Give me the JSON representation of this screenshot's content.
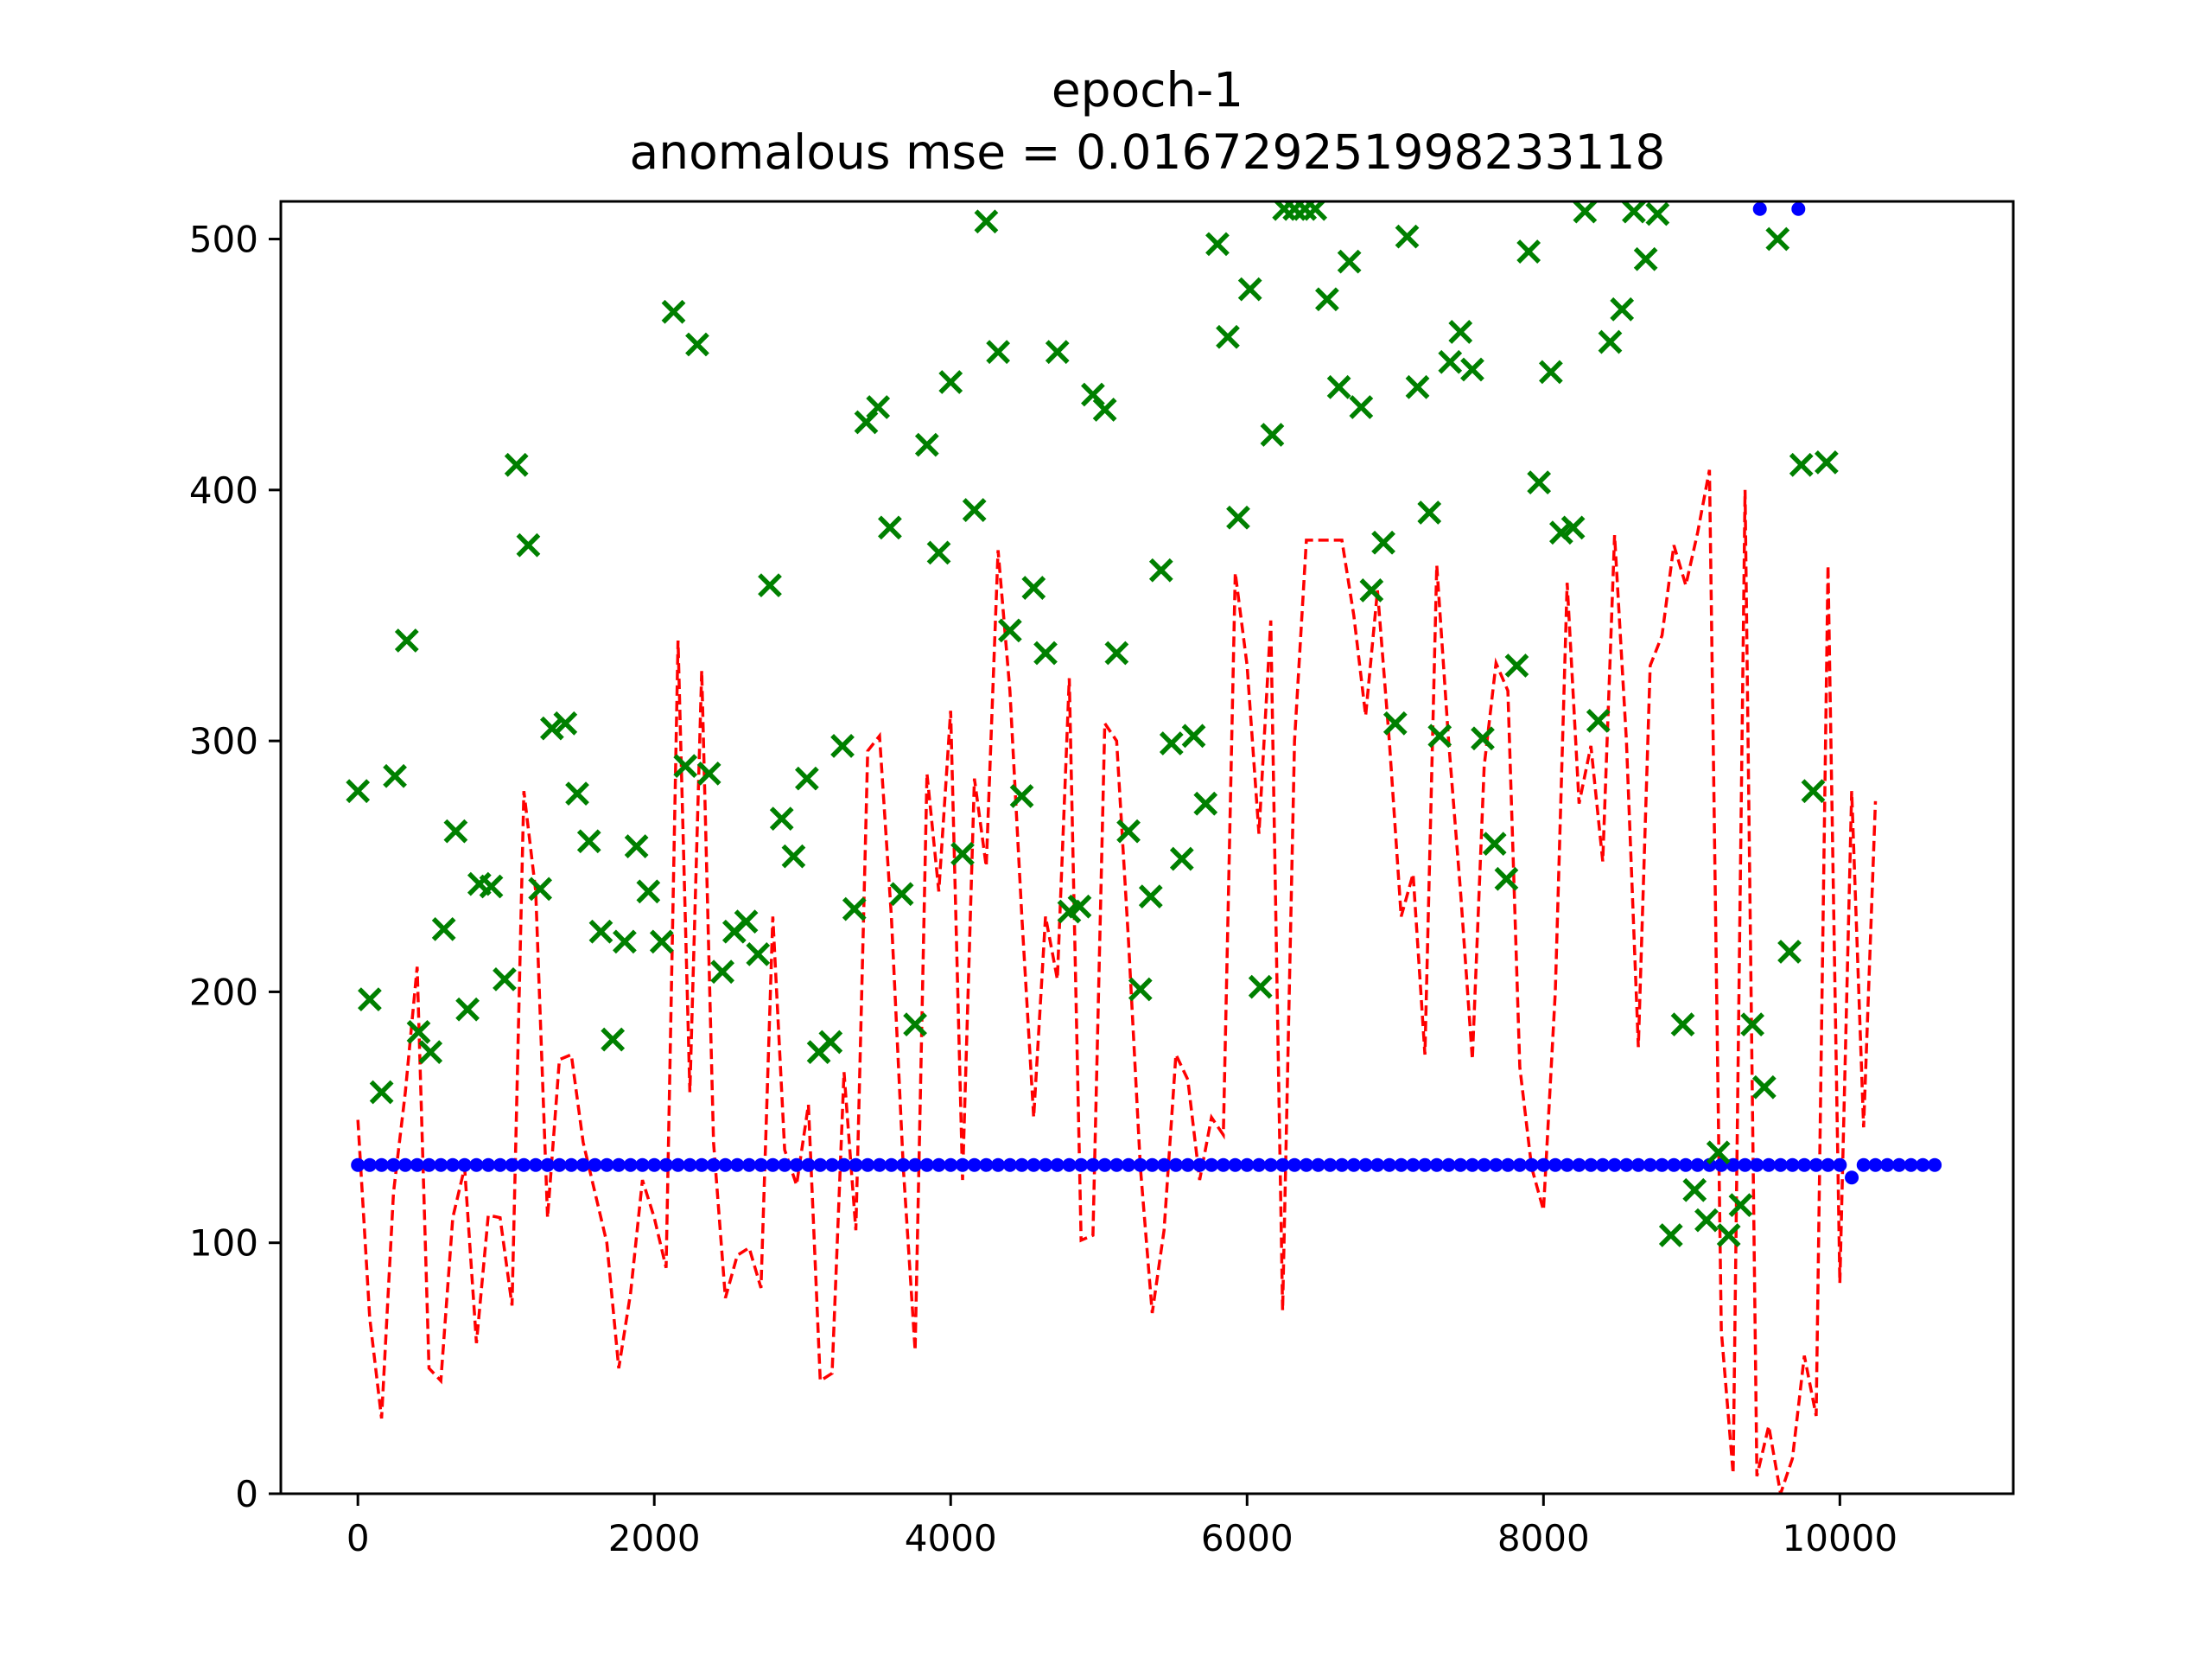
{
  "chart_data": {
    "type": "scatter",
    "title": "epoch-1",
    "subtitle": "anomalous mse = 0.016729251998233118",
    "xlabel": "",
    "ylabel": "",
    "xlim": [
      -520,
      11170
    ],
    "ylim": [
      0,
      515
    ],
    "xticks": [
      0,
      2000,
      4000,
      6000,
      8000,
      10000
    ],
    "yticks": [
      0,
      100,
      200,
      300,
      400,
      500
    ],
    "grid": false,
    "legend": "none",
    "colors": {
      "dots": "#0000ff",
      "crosses": "#008000",
      "line": "#ff0000"
    },
    "series": [
      {
        "style": "dots",
        "x_start": 0,
        "x_step": 80,
        "count": 134,
        "default_y": 131,
        "overrides": [
          [
            117,
            131
          ],
          [
            118,
            131
          ],
          [
            123,
            131
          ],
          [
            124,
            131
          ],
          [
            125,
            131
          ],
          [
            126,
            126
          ],
          [
            127,
            131
          ]
        ],
        "extra_points": [
          [
            9460,
            512
          ],
          [
            9720,
            512
          ]
        ]
      },
      {
        "style": "crosses",
        "points": [
          [
            0,
            280
          ],
          [
            80,
            197
          ],
          [
            160,
            160
          ],
          [
            250,
            286
          ],
          [
            330,
            340
          ],
          [
            410,
            184
          ],
          [
            490,
            176
          ],
          [
            580,
            225
          ],
          [
            660,
            264
          ],
          [
            740,
            193
          ],
          [
            820,
            243
          ],
          [
            900,
            242
          ],
          [
            990,
            205
          ],
          [
            1070,
            410
          ],
          [
            1150,
            378
          ],
          [
            1230,
            241
          ],
          [
            1310,
            305
          ],
          [
            1400,
            307
          ],
          [
            1480,
            279
          ],
          [
            1560,
            260
          ],
          [
            1640,
            224
          ],
          [
            1720,
            181
          ],
          [
            1800,
            220
          ],
          [
            1880,
            258
          ],
          [
            1960,
            240
          ],
          [
            2050,
            220
          ],
          [
            2130,
            471
          ],
          [
            2210,
            290
          ],
          [
            2290,
            458
          ],
          [
            2370,
            287
          ],
          [
            2460,
            208
          ],
          [
            2540,
            224
          ],
          [
            2620,
            228
          ],
          [
            2700,
            215
          ],
          [
            2780,
            362
          ],
          [
            2860,
            269
          ],
          [
            2940,
            254
          ],
          [
            3030,
            285
          ],
          [
            3110,
            176
          ],
          [
            3190,
            180
          ],
          [
            3270,
            298
          ],
          [
            3350,
            233
          ],
          [
            3430,
            427
          ],
          [
            3510,
            433
          ],
          [
            3590,
            385
          ],
          [
            3670,
            239
          ],
          [
            3760,
            187
          ],
          [
            3840,
            418
          ],
          [
            3920,
            375
          ],
          [
            4000,
            443
          ],
          [
            4080,
            255
          ],
          [
            4160,
            392
          ],
          [
            4240,
            507
          ],
          [
            4320,
            455
          ],
          [
            4400,
            344
          ],
          [
            4480,
            278
          ],
          [
            4560,
            361
          ],
          [
            4640,
            335
          ],
          [
            4720,
            455
          ],
          [
            4800,
            232
          ],
          [
            4870,
            234
          ],
          [
            4960,
            438
          ],
          [
            5040,
            432
          ],
          [
            5120,
            335
          ],
          [
            5200,
            264
          ],
          [
            5280,
            201
          ],
          [
            5350,
            238
          ],
          [
            5420,
            368
          ],
          [
            5490,
            299
          ],
          [
            5560,
            253
          ],
          [
            5640,
            302
          ],
          [
            5720,
            275
          ],
          [
            5800,
            498
          ],
          [
            5870,
            461
          ],
          [
            5940,
            389
          ],
          [
            6020,
            480
          ],
          [
            6090,
            202
          ],
          [
            6170,
            422
          ],
          [
            6250,
            512
          ],
          [
            6320,
            512
          ],
          [
            6390,
            512
          ],
          [
            6460,
            512
          ],
          [
            6540,
            476
          ],
          [
            6620,
            441
          ],
          [
            6690,
            491
          ],
          [
            6770,
            433
          ],
          [
            6840,
            360
          ],
          [
            6920,
            379
          ],
          [
            7000,
            307
          ],
          [
            7080,
            501
          ],
          [
            7150,
            441
          ],
          [
            7230,
            391
          ],
          [
            7300,
            302
          ],
          [
            7370,
            451
          ],
          [
            7440,
            463
          ],
          [
            7520,
            448
          ],
          [
            7590,
            301
          ],
          [
            7670,
            259
          ],
          [
            7750,
            245
          ],
          [
            7820,
            330
          ],
          [
            7900,
            495
          ],
          [
            7970,
            403
          ],
          [
            8050,
            447
          ],
          [
            8120,
            383
          ],
          [
            8200,
            385
          ],
          [
            8280,
            511
          ],
          [
            8370,
            308
          ],
          [
            8450,
            459
          ],
          [
            8530,
            472
          ],
          [
            8610,
            511
          ],
          [
            8690,
            492
          ],
          [
            8770,
            510
          ],
          [
            8860,
            103
          ],
          [
            8940,
            187
          ],
          [
            9020,
            121
          ],
          [
            9100,
            109
          ],
          [
            9180,
            136
          ],
          [
            9250,
            103
          ],
          [
            9330,
            115
          ],
          [
            9410,
            187
          ],
          [
            9490,
            162
          ],
          [
            9580,
            500
          ],
          [
            9660,
            216
          ],
          [
            9740,
            410
          ],
          [
            9820,
            280
          ],
          [
            9910,
            411
          ]
        ]
      },
      {
        "style": "dashed-line",
        "x_start": 0,
        "x_step": 80,
        "values": [
          149,
          70,
          30,
          120,
          160,
          210,
          50,
          45,
          110,
          130,
          60,
          111,
          110,
          75,
          280,
          240,
          110,
          173,
          175,
          140,
          120,
          100,
          50,
          80,
          125,
          110,
          90,
          340,
          160,
          328,
          140,
          78,
          95,
          98,
          82,
          230,
          137,
          123,
          155,
          45,
          48,
          168,
          105,
          296,
          302,
          230,
          130,
          57,
          287,
          240,
          312,
          125,
          285,
          250,
          376,
          320,
          230,
          150,
          230,
          205,
          325,
          101,
          103,
          307,
          300,
          220,
          130,
          72,
          105,
          175,
          165,
          125,
          150,
          143,
          367,
          330,
          263,
          348,
          73,
          300,
          380,
          380,
          380,
          380,
          350,
          310,
          360,
          300,
          230,
          247,
          175,
          370,
          300,
          240,
          173,
          290,
          331,
          320,
          170,
          130,
          113,
          200,
          363,
          275,
          298,
          252,
          382,
          300,
          178,
          330,
          342,
          378,
          362,
          383,
          408,
          65,
          8,
          400,
          7,
          27,
          0,
          14,
          55,
          31,
          370,
          84,
          280,
          146,
          276
        ]
      }
    ]
  }
}
